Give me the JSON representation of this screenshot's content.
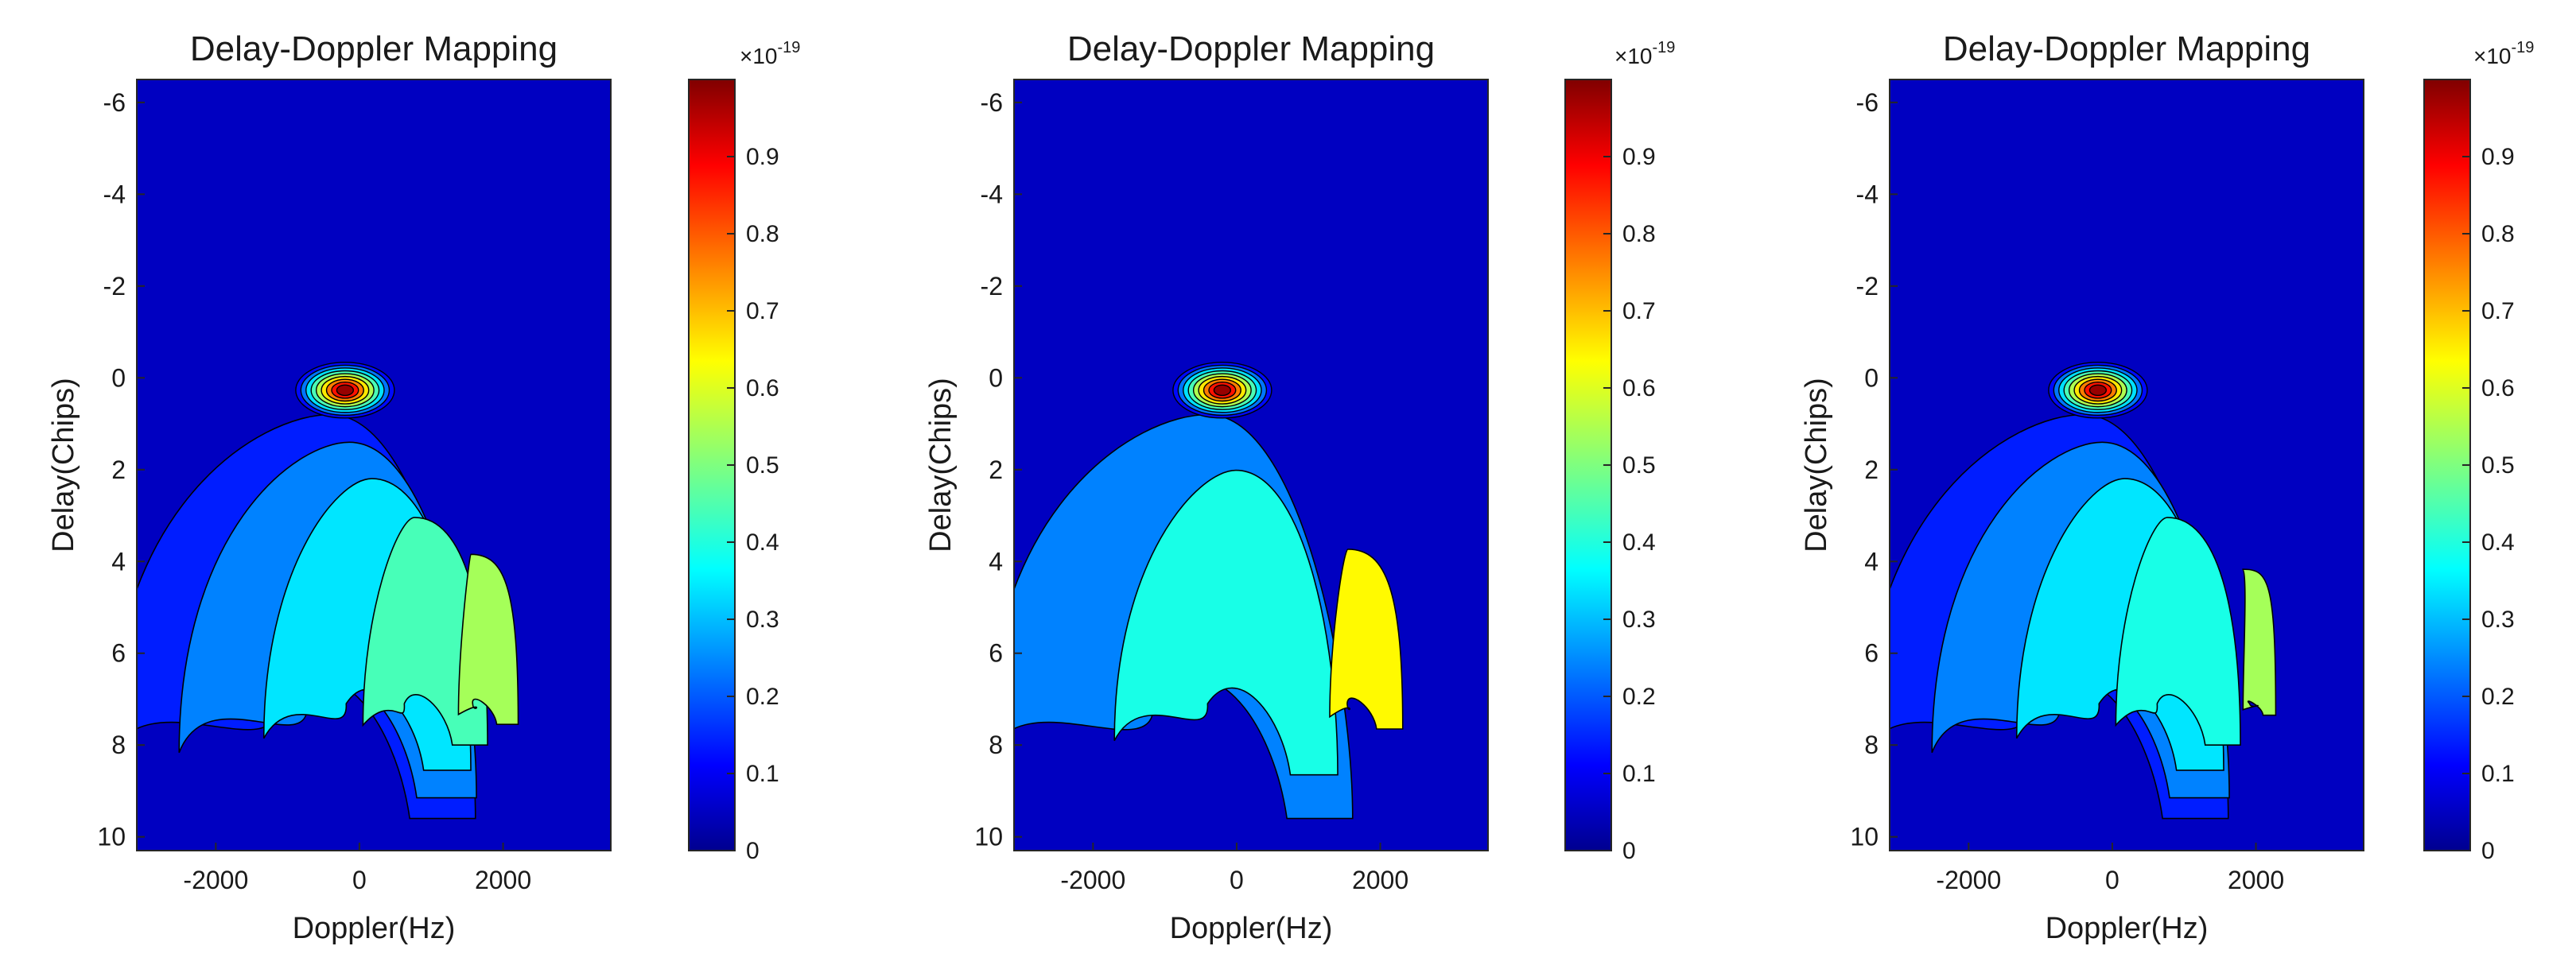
{
  "chart_data": [
    {
      "type": "contourf",
      "title": "Delay-Doppler Mapping",
      "xlabel": "Doppler(Hz)",
      "ylabel": "Delay(Chips)",
      "xlim": [
        -3100,
        3500
      ],
      "ylim": [
        -6.5,
        10.3
      ],
      "y_reversed": true,
      "xticks": [
        -2000,
        0,
        2000
      ],
      "yticks": [
        -6,
        -4,
        -2,
        0,
        2,
        4,
        6,
        8,
        10
      ],
      "peak": {
        "doppler": -200,
        "delay": 0.2,
        "value": 0.98
      },
      "regions": [
        {
          "level": 0.1,
          "spread": 1.0,
          "skew": 0.0
        },
        {
          "level": 0.2,
          "spread": 0.82,
          "skew": 0.1
        },
        {
          "level": 0.3,
          "spread": 0.58,
          "skew": 0.22
        },
        {
          "level": 0.4,
          "spread": 0.36,
          "skew": 0.45
        },
        {
          "level": 0.5,
          "spread": 0.18,
          "skew": 0.75
        }
      ],
      "colorbar": {
        "min": 0,
        "max": 1.0,
        "ticks": [
          0,
          0.1,
          0.2,
          0.3,
          0.4,
          0.5,
          0.6,
          0.7,
          0.8,
          0.9
        ],
        "exponent": "×10",
        "exponent_power": "-19"
      }
    },
    {
      "type": "contourf",
      "title": "Delay-Doppler Mapping",
      "xlabel": "Doppler(Hz)",
      "ylabel": "Delay(Chips)",
      "xlim": [
        -3100,
        3500
      ],
      "ylim": [
        -6.5,
        10.3
      ],
      "y_reversed": true,
      "xticks": [
        -2000,
        0,
        2000
      ],
      "yticks": [
        -6,
        -4,
        -2,
        0,
        2,
        4,
        6,
        8,
        10
      ],
      "peak": {
        "doppler": -200,
        "delay": 0.2,
        "value": 0.98
      },
      "regions": [
        {
          "level": 0.2,
          "spread": 1.0,
          "skew": 0.0
        },
        {
          "level": 0.35,
          "spread": 0.62,
          "skew": 0.15
        },
        {
          "level": 0.6,
          "spread": 0.22,
          "skew": 0.75
        }
      ],
      "colorbar": {
        "min": 0,
        "max": 1.0,
        "ticks": [
          0,
          0.1,
          0.2,
          0.3,
          0.4,
          0.5,
          0.6,
          0.7,
          0.8,
          0.9
        ],
        "exponent": "×10",
        "exponent_power": "-19"
      }
    },
    {
      "type": "contourf",
      "title": "Delay-Doppler Mapping",
      "xlabel": "Doppler(Hz)",
      "ylabel": "Delay(Chips)",
      "xlim": [
        -3100,
        3500
      ],
      "ylim": [
        -6.5,
        10.3
      ],
      "y_reversed": true,
      "xticks": [
        -2000,
        0,
        2000
      ],
      "yticks": [
        -6,
        -4,
        -2,
        0,
        2,
        4,
        6,
        8,
        10
      ],
      "peak": {
        "doppler": -200,
        "delay": 0.2,
        "value": 0.98
      },
      "regions": [
        {
          "level": 0.1,
          "spread": 1.0,
          "skew": 0.0
        },
        {
          "level": 0.2,
          "spread": 0.82,
          "skew": 0.1
        },
        {
          "level": 0.3,
          "spread": 0.58,
          "skew": 0.22
        },
        {
          "level": 0.35,
          "spread": 0.36,
          "skew": 0.45
        },
        {
          "level": 0.5,
          "spread": 0.1,
          "skew": 0.85
        }
      ],
      "colorbar": {
        "min": 0,
        "max": 1.0,
        "ticks": [
          0,
          0.1,
          0.2,
          0.3,
          0.4,
          0.5,
          0.6,
          0.7,
          0.8,
          0.9
        ],
        "exponent": "×10",
        "exponent_power": "-19"
      }
    }
  ]
}
